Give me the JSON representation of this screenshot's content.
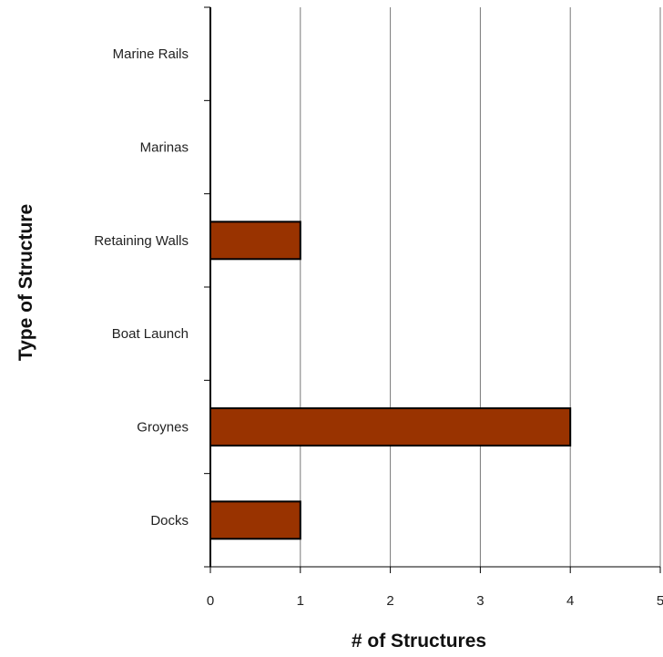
{
  "chart_data": {
    "type": "bar",
    "orientation": "horizontal",
    "categories": [
      "Docks",
      "Groynes",
      "Boat Launch",
      "Retaining Walls",
      "Marinas",
      "Marine Rails"
    ],
    "values": [
      1,
      4,
      0,
      1,
      0,
      0
    ],
    "xlabel": "# of Structures",
    "ylabel": "Type of Structure",
    "xlim": [
      0,
      5
    ],
    "xticks": [
      "0",
      "1",
      "2",
      "3",
      "4",
      "5"
    ],
    "grid": "vertical",
    "legend": "none",
    "bar_color": "#993300",
    "bar_border_color": "#000000"
  }
}
